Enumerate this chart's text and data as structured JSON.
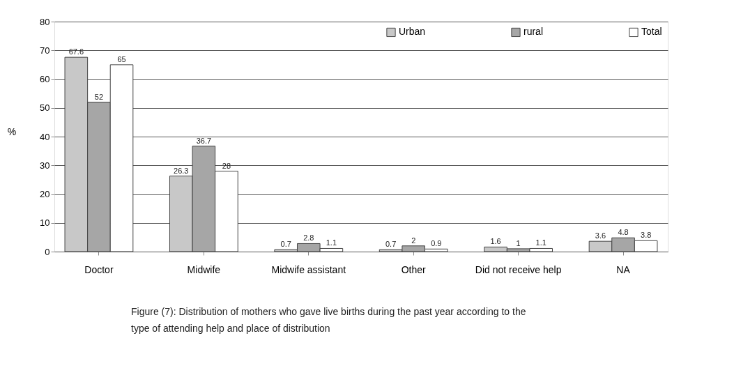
{
  "chart_data": {
    "type": "bar",
    "ylabel": "%",
    "categories": [
      "Doctor",
      "Midwife",
      "Midwife assistant",
      "Other",
      "Did not receive help",
      "NA"
    ],
    "series": [
      {
        "name": "Urban",
        "color": "#c8c8c8",
        "values": [
          67.6,
          26.3,
          0.7,
          0.7,
          1.6,
          3.6
        ]
      },
      {
        "name": "rural",
        "color": "#a6a6a6",
        "values": [
          52,
          36.7,
          2.8,
          2,
          1,
          4.8
        ]
      },
      {
        "name": "Total",
        "color": "#ffffff",
        "values": [
          65,
          28,
          1.1,
          0.9,
          1.1,
          3.8
        ]
      }
    ],
    "ylim": [
      0,
      80
    ],
    "yticks": [
      0,
      10,
      20,
      30,
      40,
      50,
      60,
      70,
      80
    ],
    "grid": "y",
    "legend": "top right",
    "data_labels": true,
    "annotations": [
      "Figure (7): Distribution of mothers who gave live births during the past year according to the type of attending help and place of distribution"
    ]
  }
}
